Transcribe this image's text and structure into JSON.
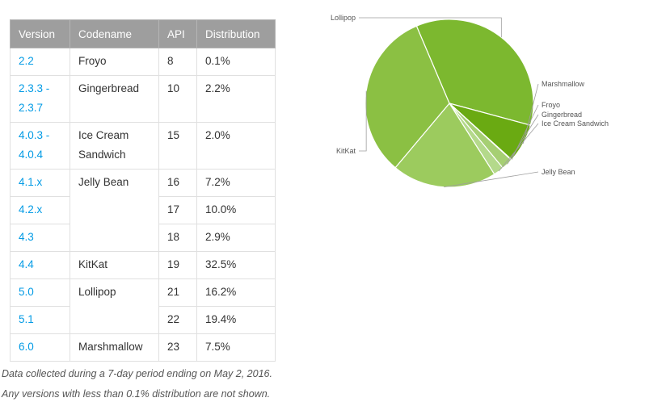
{
  "table": {
    "headers": [
      "Version",
      "Codename",
      "API",
      "Distribution"
    ],
    "rows": [
      {
        "version": "2.2",
        "codename": "Froyo",
        "api": "8",
        "distribution": "0.1%"
      },
      {
        "version": "2.3.3 -\n2.3.7",
        "codename": "Gingerbread",
        "api": "10",
        "distribution": "2.2%"
      },
      {
        "version": "4.0.3 -\n4.0.4",
        "codename": "Ice Cream\nSandwich",
        "api": "15",
        "distribution": "2.0%"
      },
      {
        "version": "4.1.x",
        "codename": "Jelly Bean",
        "api": "16",
        "distribution": "7.2%"
      },
      {
        "version": "4.2.x",
        "codename": "",
        "api": "17",
        "distribution": "10.0%"
      },
      {
        "version": "4.3",
        "codename": "",
        "api": "18",
        "distribution": "2.9%"
      },
      {
        "version": "4.4",
        "codename": "KitKat",
        "api": "19",
        "distribution": "32.5%"
      },
      {
        "version": "5.0",
        "codename": "Lollipop",
        "api": "21",
        "distribution": "16.2%"
      },
      {
        "version": "5.1",
        "codename": "",
        "api": "22",
        "distribution": "19.4%"
      },
      {
        "version": "6.0",
        "codename": "Marshmallow",
        "api": "23",
        "distribution": "7.5%"
      }
    ]
  },
  "notes": [
    "Data collected during a 7-day period ending on May 2, 2016.",
    "Any versions with less than 0.1% distribution are not shown."
  ],
  "colors": {
    "header_bg": "#9e9e9e",
    "version_link": "#039be5",
    "pie_stroke": "#ffffff",
    "label_line": "#9e9e9e"
  },
  "chart_data": {
    "type": "pie",
    "slices": [
      {
        "label": "Lollipop",
        "value": 35.6,
        "color": "#7cb82f"
      },
      {
        "label": "Marshmallow",
        "value": 7.5,
        "color": "#6aaa12"
      },
      {
        "label": "Froyo",
        "value": 0.1,
        "color": "#98c65a"
      },
      {
        "label": "Gingerbread",
        "value": 2.2,
        "color": "#a6cf73"
      },
      {
        "label": "Ice Cream Sandwich",
        "value": 2.0,
        "color": "#b4d98b"
      },
      {
        "label": "Jelly Bean",
        "value": 20.1,
        "color": "#9ccb5e"
      },
      {
        "label": "KitKat",
        "value": 32.5,
        "color": "#8bc043"
      }
    ],
    "start_clockwise_from": "Lollipop (top-left)"
  }
}
